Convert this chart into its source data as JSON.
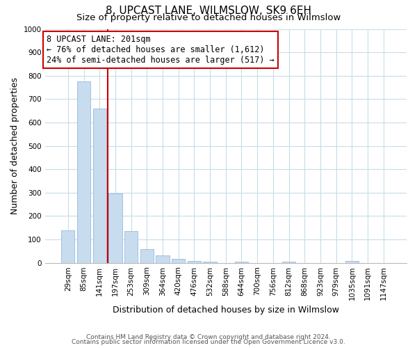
{
  "title": "8, UPCAST LANE, WILMSLOW, SK9 6EH",
  "subtitle": "Size of property relative to detached houses in Wilmslow",
  "xlabel": "Distribution of detached houses by size in Wilmslow",
  "ylabel": "Number of detached properties",
  "bar_labels": [
    "29sqm",
    "85sqm",
    "141sqm",
    "197sqm",
    "253sqm",
    "309sqm",
    "364sqm",
    "420sqm",
    "476sqm",
    "532sqm",
    "588sqm",
    "644sqm",
    "700sqm",
    "756sqm",
    "812sqm",
    "868sqm",
    "923sqm",
    "979sqm",
    "1035sqm",
    "1091sqm",
    "1147sqm"
  ],
  "bar_values": [
    140,
    775,
    660,
    295,
    135,
    57,
    32,
    18,
    8,
    5,
    0,
    5,
    0,
    0,
    5,
    0,
    0,
    0,
    8,
    0,
    0
  ],
  "bar_color": "#c8dcf0",
  "bar_edge_color": "#9ab8d8",
  "vline_x": 2.5,
  "vline_color": "#cc0000",
  "annotation_line1": "8 UPCAST LANE: 201sqm",
  "annotation_line2": "← 76% of detached houses are smaller (1,612)",
  "annotation_line3": "24% of semi-detached houses are larger (517) →",
  "annotation_box_color": "#ffffff",
  "annotation_box_edge_color": "#cc0000",
  "ylim": [
    0,
    1000
  ],
  "yticks": [
    0,
    100,
    200,
    300,
    400,
    500,
    600,
    700,
    800,
    900,
    1000
  ],
  "footer_line1": "Contains HM Land Registry data © Crown copyright and database right 2024.",
  "footer_line2": "Contains public sector information licensed under the Open Government Licence v3.0.",
  "bg_color": "#ffffff",
  "grid_color": "#c8dce8",
  "title_fontsize": 11,
  "subtitle_fontsize": 9.5,
  "axis_label_fontsize": 9,
  "tick_fontsize": 7.5,
  "annotation_fontsize": 8.5,
  "footer_fontsize": 6.5
}
